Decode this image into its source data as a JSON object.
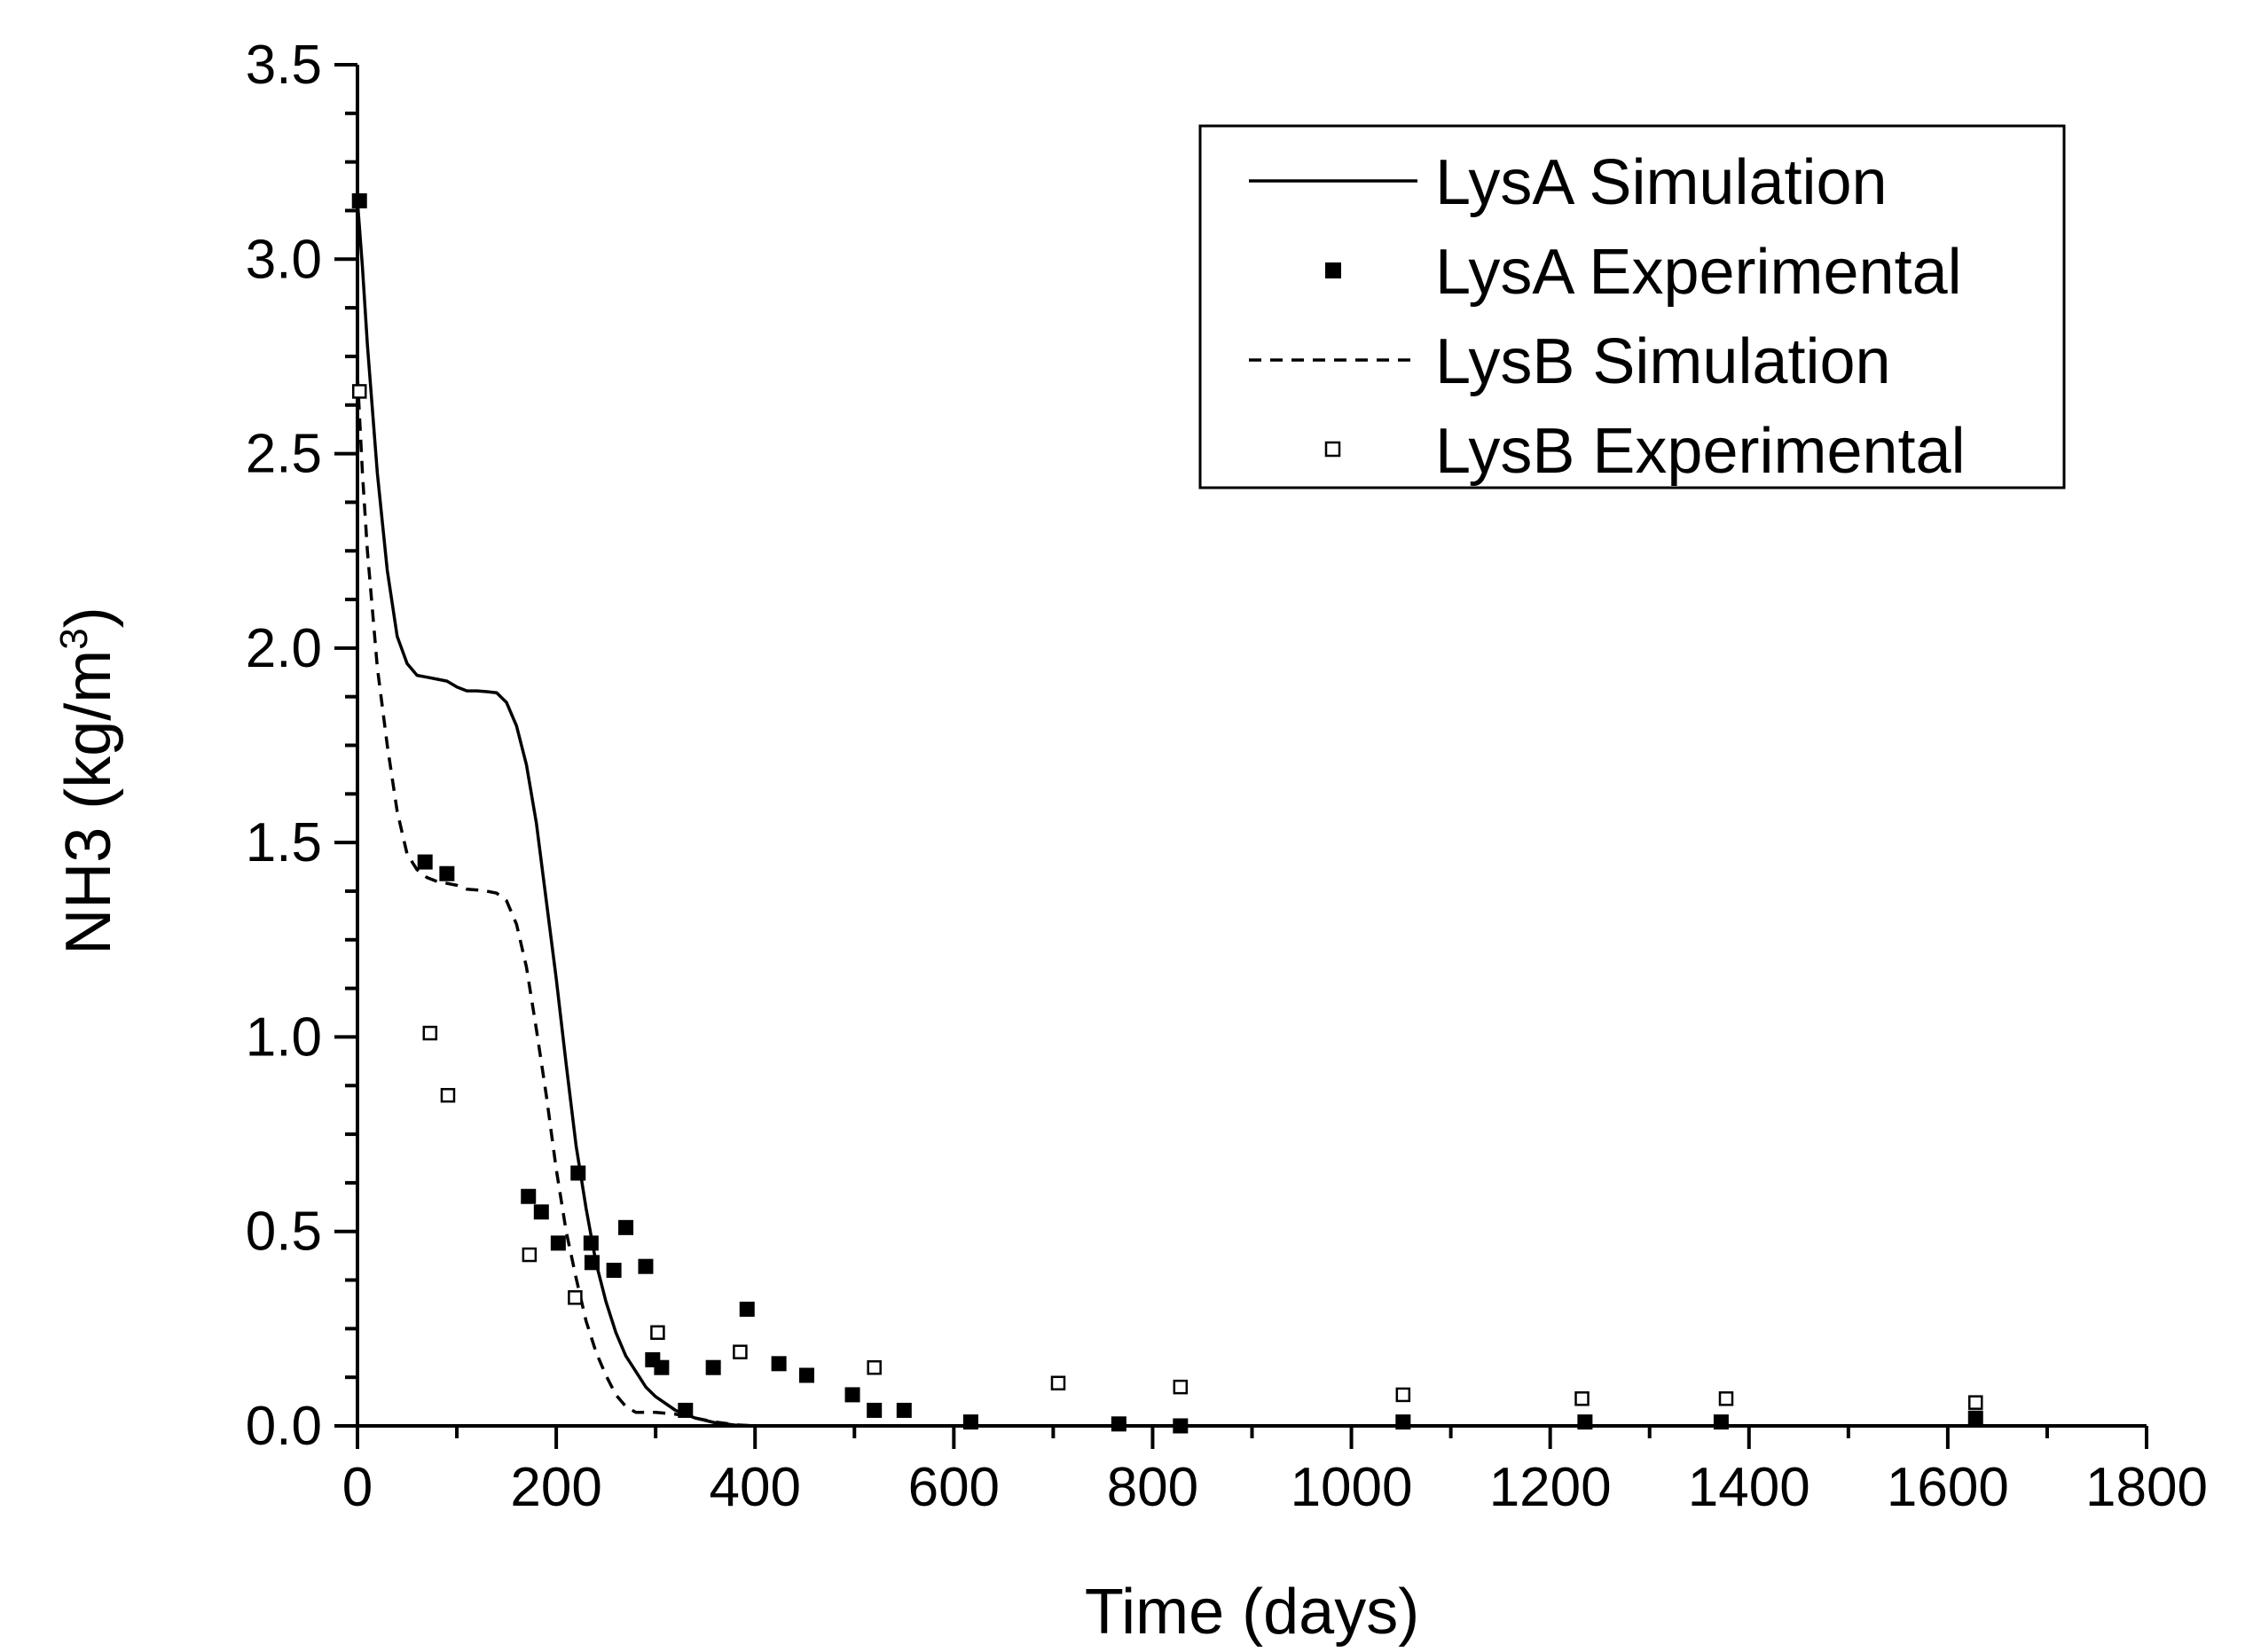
{
  "chart_data": {
    "type": "line",
    "title": "",
    "xlabel": "Time (days)",
    "ylabel": "NH3 (kg/m",
    "ylabel_sup": "3",
    "ylabel_close": ")",
    "xlim": [
      0,
      1800
    ],
    "ylim": [
      0,
      3.5
    ],
    "x_ticks": [
      0,
      200,
      400,
      600,
      800,
      1000,
      1200,
      1400,
      1600,
      1800
    ],
    "x_tick_labels": [
      "0",
      "200",
      "400",
      "600",
      "800",
      "1000",
      "1200",
      "1400",
      "1600",
      "1800"
    ],
    "y_ticks": [
      0,
      0.5,
      1.0,
      1.5,
      2.0,
      2.5,
      3.0,
      3.5
    ],
    "y_tick_labels": [
      "0.0",
      "0.5",
      "1.0",
      "1.5",
      "2.0",
      "2.5",
      "3.0",
      "3.5"
    ],
    "legend_position": "top-right",
    "series": [
      {
        "name": "LysA Simulation",
        "kind": "line",
        "style": "solid",
        "x": [
          0,
          5,
          10,
          20,
          30,
          40,
          50,
          60,
          70,
          80,
          90,
          100,
          110,
          120,
          130,
          140,
          150,
          160,
          170,
          180,
          190,
          200,
          210,
          220,
          230,
          240,
          250,
          260,
          270,
          280,
          290,
          300,
          320,
          340,
          360,
          380,
          400,
          500,
          700,
          1000,
          1300,
          1630
        ],
        "y": [
          3.15,
          2.98,
          2.78,
          2.45,
          2.2,
          2.03,
          1.96,
          1.93,
          1.925,
          1.92,
          1.915,
          1.9,
          1.89,
          1.89,
          1.888,
          1.885,
          1.86,
          1.8,
          1.7,
          1.55,
          1.35,
          1.15,
          0.93,
          0.72,
          0.56,
          0.42,
          0.32,
          0.24,
          0.18,
          0.14,
          0.1,
          0.075,
          0.04,
          0.02,
          0.008,
          0.002,
          0.0,
          0.0,
          0.0,
          0.0,
          0.0,
          0.0
        ]
      },
      {
        "name": "LysA Experimental",
        "kind": "scatter",
        "marker": "filled-square",
        "x": [
          2,
          68,
          90,
          172,
          185,
          202,
          222,
          235,
          236,
          258,
          270,
          290,
          297,
          306,
          330,
          358,
          392,
          424,
          452,
          498,
          520,
          550,
          617,
          766,
          828,
          1052,
          1235,
          1372,
          1628
        ],
        "y": [
          3.15,
          1.45,
          1.42,
          0.59,
          0.55,
          0.47,
          0.65,
          0.47,
          0.42,
          0.4,
          0.51,
          0.41,
          0.17,
          0.15,
          0.04,
          0.15,
          0.3,
          0.16,
          0.13,
          0.08,
          0.04,
          0.04,
          0.01,
          0.005,
          0.0,
          0.01,
          0.01,
          0.01,
          0.02
        ]
      },
      {
        "name": "LysB Simulation",
        "kind": "line",
        "style": "dashed",
        "x": [
          0,
          5,
          10,
          15,
          20,
          30,
          40,
          50,
          60,
          70,
          80,
          90,
          100,
          110,
          120,
          130,
          140,
          150,
          160,
          170,
          180,
          190,
          200,
          210,
          220,
          230,
          240,
          250,
          260,
          270,
          280,
          290,
          300,
          320,
          340,
          360,
          380,
          400,
          600,
          1000,
          1630
        ],
        "y": [
          2.7,
          2.45,
          2.25,
          2.1,
          1.95,
          1.75,
          1.58,
          1.47,
          1.43,
          1.41,
          1.4,
          1.395,
          1.39,
          1.38,
          1.378,
          1.375,
          1.37,
          1.35,
          1.29,
          1.18,
          1.02,
          0.85,
          0.66,
          0.5,
          0.38,
          0.27,
          0.19,
          0.13,
          0.08,
          0.05,
          0.035,
          0.035,
          0.035,
          0.03,
          0.02,
          0.01,
          0.003,
          0.0,
          0.0,
          0.0,
          0.0
        ]
      },
      {
        "name": "LysB Experimental",
        "kind": "scatter",
        "marker": "open-square",
        "x": [
          2,
          73,
          91,
          173,
          219,
          302,
          385,
          520,
          705,
          828,
          1052,
          1232,
          1377,
          1628
        ],
        "y": [
          2.66,
          1.01,
          0.85,
          0.44,
          0.33,
          0.24,
          0.19,
          0.15,
          0.11,
          0.1,
          0.08,
          0.07,
          0.07,
          0.06
        ]
      }
    ]
  }
}
